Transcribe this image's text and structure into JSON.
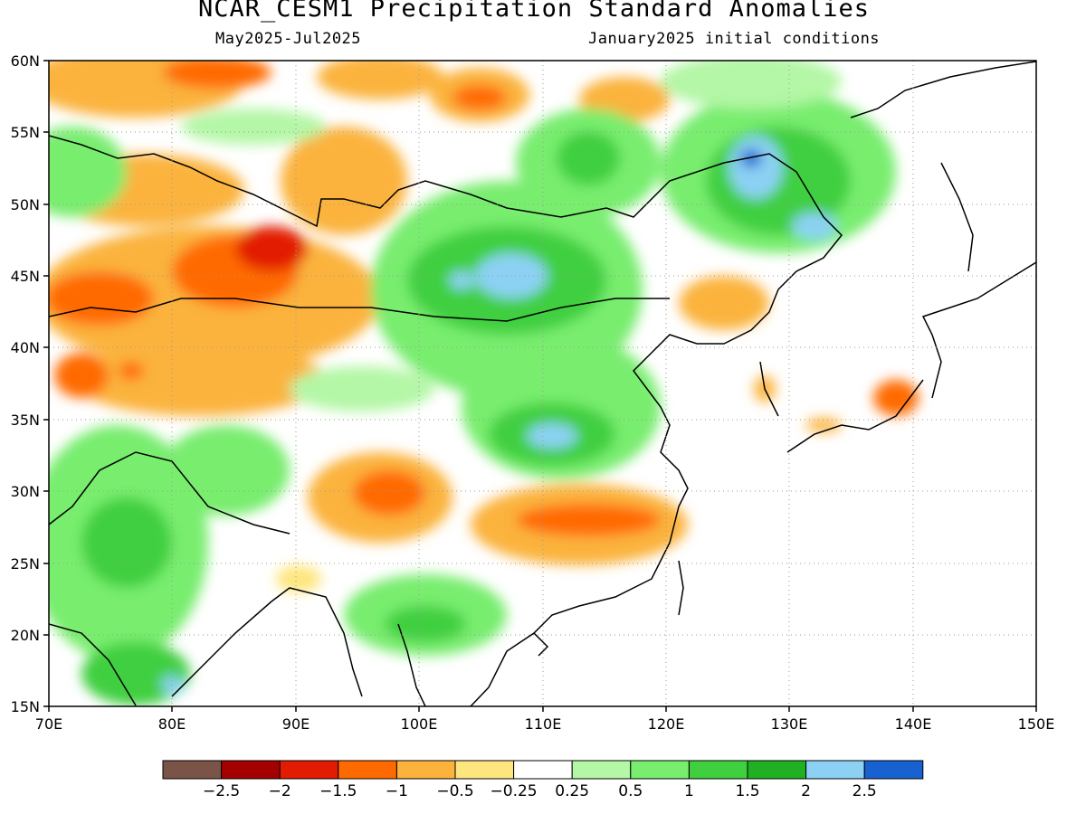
{
  "title": "NCAR_CESM1 Precipitation Standard Anomalies",
  "subtitle_left": "May2025-Jul2025",
  "subtitle_right": "January2025 initial conditions",
  "lat_labels": [
    "15N",
    "20N",
    "25N",
    "30N",
    "35N",
    "40N",
    "45N",
    "50N",
    "55N",
    "60N"
  ],
  "lon_labels": [
    "70E",
    "80E",
    "90E",
    "100E",
    "110E",
    "120E",
    "130E",
    "140E",
    "150E"
  ],
  "colorbar": {
    "colors": [
      "#7a5447",
      "#a50000",
      "#e21c00",
      "#ff6a00",
      "#fbb33c",
      "#fde67d",
      "#ffffff",
      "#b4f7a6",
      "#78ed6e",
      "#3fcf3f",
      "#20b024",
      "#8cd1f4",
      "#1762d0"
    ],
    "labels": [
      "-2.5",
      "-2",
      "-1.5",
      "-1",
      "-0.5",
      "-0.25",
      "0.25",
      "0.5",
      "1",
      "1.5",
      "2",
      "2.5"
    ]
  }
}
